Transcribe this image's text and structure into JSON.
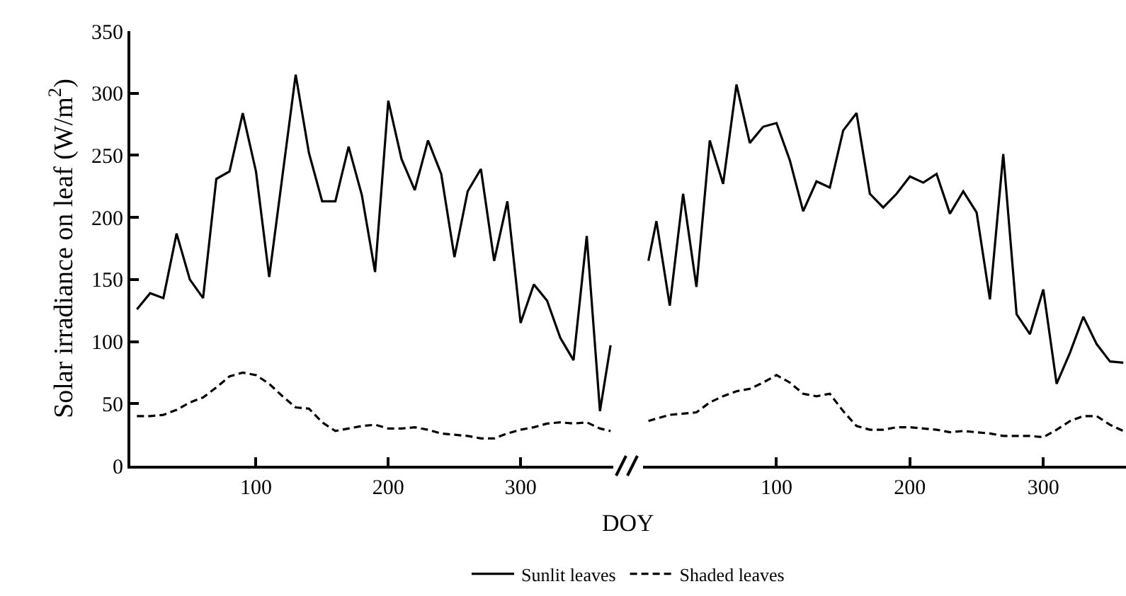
{
  "chart_data": [
    {
      "type": "line",
      "xlabel": "DOY",
      "ylabel": "Solar irradiance on leaf (W/m$^{2}$)",
      "xlim": [
        5,
        370
      ],
      "xticks": [
        100,
        200,
        300
      ],
      "ylim": [
        0,
        350
      ],
      "yticks": [
        0,
        50,
        100,
        150,
        200,
        250,
        300,
        350
      ],
      "grid": false,
      "legend": "bottom",
      "marker": "none",
      "series": [
        {
          "name": "Sunlit leaves",
          "color": "#000000",
          "line_style": "solid",
          "x": [
            10,
            20,
            30,
            40,
            50,
            60,
            70,
            80,
            90,
            100,
            110,
            130,
            140,
            150,
            160,
            170,
            180,
            190,
            200,
            210,
            220,
            230,
            240,
            250,
            260,
            270,
            280,
            290,
            300,
            310,
            320,
            330,
            340,
            350,
            360,
            368
          ],
          "values": [
            126,
            139,
            135,
            187,
            150,
            135,
            231,
            237,
            284,
            237,
            152,
            315,
            252,
            213,
            213,
            257,
            218,
            156,
            294,
            247,
            222,
            262,
            235,
            168,
            221,
            239,
            165,
            213,
            115,
            146,
            133,
            103,
            85,
            185,
            44,
            97
          ]
        },
        {
          "name": "Shaded leaves",
          "color": "#000000",
          "line_style": "dashed",
          "x": [
            10,
            20,
            30,
            40,
            50,
            60,
            70,
            80,
            90,
            100,
            110,
            120,
            130,
            140,
            150,
            160,
            170,
            180,
            190,
            200,
            210,
            220,
            230,
            240,
            250,
            260,
            270,
            280,
            290,
            300,
            310,
            320,
            330,
            340,
            350,
            360,
            368
          ],
          "values": [
            40,
            40,
            41,
            45,
            51,
            55,
            63,
            72,
            75,
            73,
            66,
            56,
            47,
            46,
            35,
            28,
            30,
            32,
            33,
            30,
            30,
            31,
            29,
            26,
            25,
            24,
            22,
            22,
            26,
            29,
            31,
            34,
            35,
            34,
            35,
            30,
            28
          ]
        }
      ]
    },
    {
      "type": "line",
      "xlim": [
        0,
        362
      ],
      "xticks": [
        100,
        200,
        300
      ],
      "ylim": [
        0,
        350
      ],
      "yticks": [
        0,
        50,
        100,
        150,
        200,
        250,
        300,
        350
      ],
      "tick_labels": "x",
      "grid": false,
      "marker": "none",
      "series": [
        {
          "name": "Sunlit leaves",
          "color": "#000000",
          "line_style": "solid",
          "x": [
            4,
            10,
            20,
            30,
            40,
            50,
            60,
            70,
            80,
            90,
            100,
            110,
            120,
            130,
            140,
            150,
            160,
            170,
            180,
            190,
            200,
            210,
            220,
            230,
            240,
            250,
            260,
            270,
            280,
            290,
            300,
            310,
            320,
            330,
            340,
            350,
            360
          ],
          "values": [
            165,
            197,
            129,
            219,
            144,
            262,
            227,
            307,
            260,
            273,
            276,
            246,
            205,
            229,
            224,
            270,
            284,
            219,
            208,
            219,
            233,
            228,
            235,
            203,
            221,
            204,
            134,
            251,
            122,
            106,
            142,
            66,
            91,
            120,
            98,
            84,
            83
          ]
        },
        {
          "name": "Shaded leaves",
          "color": "#000000",
          "line_style": "dashed",
          "x": [
            4,
            10,
            20,
            30,
            40,
            50,
            60,
            70,
            80,
            90,
            100,
            110,
            120,
            130,
            140,
            150,
            160,
            170,
            180,
            190,
            200,
            210,
            220,
            230,
            240,
            250,
            260,
            270,
            280,
            290,
            300,
            310,
            320,
            330,
            340,
            350,
            360
          ],
          "values": [
            36,
            38,
            41,
            42,
            43,
            51,
            56,
            60,
            62,
            67,
            73,
            67,
            58,
            56,
            58,
            44,
            32,
            29,
            29,
            31,
            31,
            30,
            29,
            27,
            28,
            27,
            26,
            24,
            24,
            24,
            23,
            29,
            36,
            40,
            40,
            33,
            28
          ]
        }
      ]
    }
  ]
}
